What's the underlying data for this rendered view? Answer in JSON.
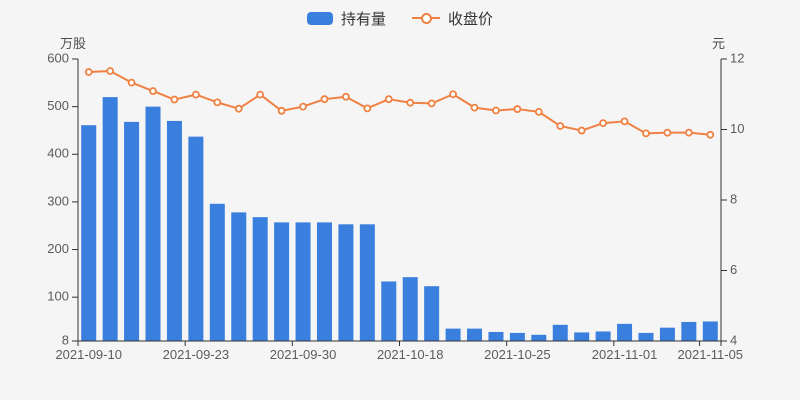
{
  "legend": [
    {
      "label": "持有量",
      "type": "bar"
    },
    {
      "label": "收盘价",
      "type": "line"
    }
  ],
  "colors": {
    "background": "#f5f5f6",
    "axis_line": "#333333",
    "tick_label": "#5c5c5c",
    "axis_name": "#4d4d4d",
    "legend_text": "#333333",
    "bar": "#3a7fdd",
    "line": "#ef8143"
  },
  "chart_data": {
    "type": "bar+line",
    "title": "",
    "x": {
      "count": 30,
      "visible_tick_labels": [
        {
          "index": 0,
          "label": "2021-09-10"
        },
        {
          "index": 5,
          "label": "2021-09-23"
        },
        {
          "index": 10,
          "label": "2021-09-30"
        },
        {
          "index": 15,
          "label": "2021-10-18"
        },
        {
          "index": 20,
          "label": "2021-10-25"
        },
        {
          "index": 25,
          "label": "2021-11-01"
        },
        {
          "index": 29,
          "label": "2021-11-05"
        }
      ]
    },
    "y_left": {
      "name": "万股",
      "min": 8,
      "max": 600,
      "ticks": [
        8,
        100,
        200,
        300,
        400,
        500,
        600
      ]
    },
    "y_right": {
      "name": "元",
      "min": 4,
      "max": 12,
      "ticks": [
        4,
        6,
        8,
        10,
        12
      ]
    },
    "grid": "off",
    "legend_position": "top-center",
    "series": [
      {
        "name": "持有量",
        "type": "bar",
        "y_axis": "left",
        "unit": "万股",
        "color": "#3a7fdd",
        "values": [
          461,
          520,
          468,
          500,
          470,
          437,
          296,
          278,
          268,
          257,
          257,
          257,
          253,
          253,
          133,
          142,
          123,
          34,
          34,
          27,
          25,
          21,
          42,
          26,
          28,
          44,
          25,
          36,
          48,
          49
        ]
      },
      {
        "name": "收盘价",
        "type": "line",
        "y_axis": "right",
        "unit": "元",
        "color": "#ef8143",
        "marker": "hollow-circle",
        "values": [
          11.63,
          11.66,
          11.33,
          11.09,
          10.85,
          10.99,
          10.77,
          10.59,
          10.99,
          10.53,
          10.65,
          10.86,
          10.93,
          10.6,
          10.86,
          10.76,
          10.74,
          11.0,
          10.62,
          10.54,
          10.58,
          10.5,
          10.1,
          9.97,
          10.18,
          10.23,
          9.89,
          9.91,
          9.91,
          9.85
        ]
      }
    ]
  }
}
